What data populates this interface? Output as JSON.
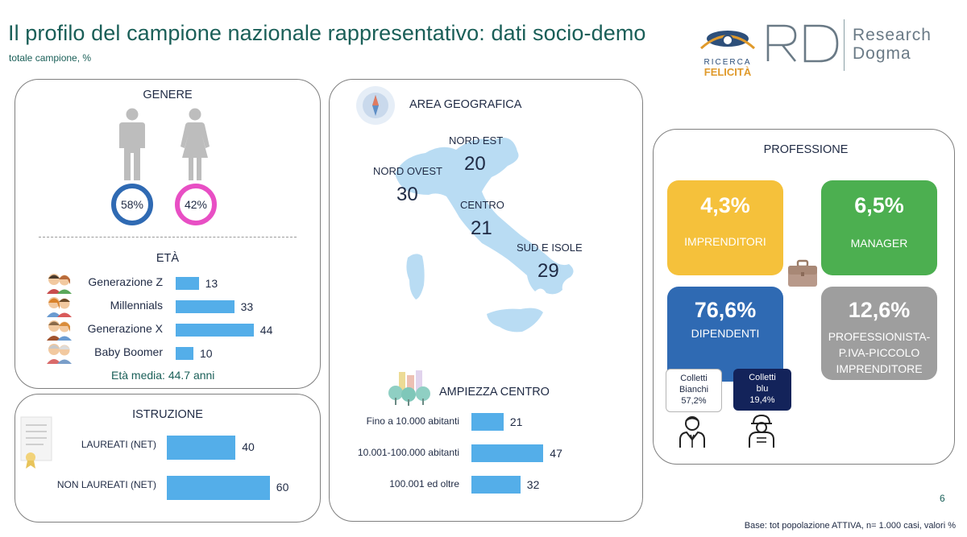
{
  "header": {
    "title": "Il profilo del campione nazionale rappresentativo: dati socio-demo",
    "subtitle": "totale campione, %"
  },
  "logos": {
    "ricerca_felicita_top": "RICERCA",
    "ricerca_felicita_bottom": "FELICITÀ",
    "rd": "RD",
    "research": "Research",
    "dogma": "Dogma"
  },
  "genere": {
    "title": "GENERE",
    "male_pct": "58%",
    "female_pct": "42%",
    "male_color": "#2f6ab3",
    "female_color": "#e84fc4"
  },
  "eta": {
    "title": "ETÀ",
    "items": [
      {
        "label": "Generazione Z",
        "value": 13
      },
      {
        "label": "Millennials",
        "value": 33
      },
      {
        "label": "Generazione X",
        "value": 44
      },
      {
        "label": "Baby Boomer",
        "value": 10
      }
    ],
    "media": "Età media: 44.7 anni"
  },
  "istruzione": {
    "title": "ISTRUZIONE",
    "items": [
      {
        "label": "LAUREATI (NET)",
        "value": 40
      },
      {
        "label": "NON LAUREATI (NET)",
        "value": 60
      }
    ]
  },
  "area": {
    "title": "AREA GEOGRAFICA",
    "regions": [
      {
        "label": "NORD EST",
        "value": "20"
      },
      {
        "label": "NORD OVEST",
        "value": "30"
      },
      {
        "label": "CENTRO",
        "value": "21"
      },
      {
        "label": "SUD E ISOLE",
        "value": "29"
      }
    ]
  },
  "ampiezza": {
    "title": "AMPIEZZA CENTRO",
    "items": [
      {
        "label": "Fino a 10.000 abitanti",
        "value": 21
      },
      {
        "label": "10.001-100.000 abitanti",
        "value": 47
      },
      {
        "label": "100.001 ed oltre",
        "value": 32
      }
    ]
  },
  "professione": {
    "title": "PROFESSIONE",
    "boxes": [
      {
        "pct": "4,3%",
        "label": "IMPRENDITORI",
        "color": "#f5c13b"
      },
      {
        "pct": "6,5%",
        "label": "MANAGER",
        "color": "#4caf50"
      },
      {
        "pct": "76,6%",
        "label": "DIPENDENTI",
        "color": "#2f6ab3"
      },
      {
        "pct": "12,6%",
        "label_lines": [
          "PROFESSIONISTA-",
          "P.IVA-PICCOLO",
          "IMPRENDITORE"
        ],
        "color": "#9e9e9e"
      }
    ],
    "colletti_bianchi": {
      "l1": "Colletti",
      "l2": "Bianchi",
      "pct": "57,2%"
    },
    "colletti_blu": {
      "l1": "Colletti",
      "l2": "blu",
      "pct": "19,4%"
    }
  },
  "footer": {
    "page": "6",
    "base": "Base: tot popolazione ATTIVA, n= 1.000 casi, valori %"
  }
}
